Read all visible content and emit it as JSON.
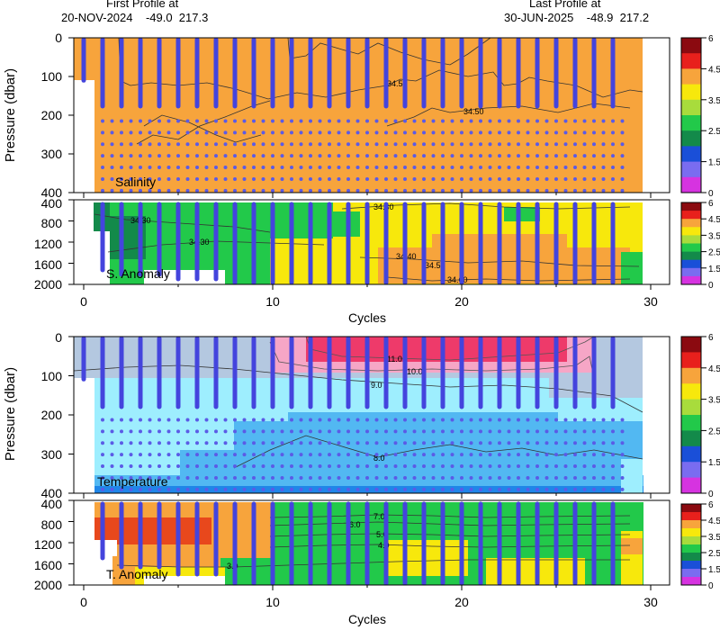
{
  "header": {
    "first_label": "First Profile at",
    "first_value": "20-NOV-2024    -49.0  217.3",
    "last_label": "Last Profile at",
    "last_value": "30-JUN-2025    -48.9  217.2"
  },
  "colors": {
    "salinity_field": "#f7a43c",
    "dots": "#5b5be6",
    "profile_line": "#4444dd",
    "temp_light": "#9eeefe",
    "temp_mid": "#52b8f2",
    "temp_deep": "#1f86e8",
    "temp_grey": "#b4c8e0",
    "temp_pink": "#f6a6c6",
    "temp_red": "#ee3a6a",
    "anom_green": "#22c94a",
    "anom_yellow": "#f7e80c",
    "anom_orange": "#f7a43c",
    "anom_red": "#e8481c"
  },
  "colorbar": {
    "ticks": [
      "6",
      "4.5",
      "3.5",
      "2.5",
      "1.5",
      "0"
    ],
    "segments": [
      "#8b0a10",
      "#e8201c",
      "#f7a43c",
      "#f7e80c",
      "#a8dc3c",
      "#22c94a",
      "#138a4a",
      "#1a4fd8",
      "#7a6cf0",
      "#d633e0"
    ]
  },
  "chart_data": [
    {
      "type": "heatmap",
      "name": "salinity-section",
      "label": "Salinity",
      "ylabel": "Pressure (dbar)",
      "ylim": [
        0,
        400
      ],
      "yticks": [
        "0",
        "100",
        "200",
        "300",
        "400"
      ],
      "xlim": [
        -1.5,
        31
      ],
      "contour_labels": [
        "34.5",
        "34.50"
      ],
      "grid": false
    },
    {
      "type": "heatmap",
      "name": "salinity-anomaly-section",
      "label": "S. Anomaly",
      "ylim": [
        400,
        2000
      ],
      "yticks": [
        "400",
        "800",
        "1200",
        "1600",
        "2000"
      ],
      "xlim": [
        -1.5,
        31
      ],
      "xticks": [
        "0",
        "10",
        "20",
        "30"
      ],
      "xlabel": "Cycles",
      "contour_labels": [
        "34.30",
        "34.30",
        "34.30",
        "34.40",
        "34.50",
        "34.60"
      ],
      "grid": false
    },
    {
      "type": "heatmap",
      "name": "temperature-section",
      "label": "Temperature",
      "ylabel": "Pressure (dbar)",
      "ylim": [
        0,
        400
      ],
      "yticks": [
        "0",
        "100",
        "200",
        "300",
        "400"
      ],
      "xlim": [
        -1.5,
        31
      ],
      "contour_labels": [
        "11.0",
        "10.0",
        "9.0",
        "8.0"
      ],
      "grid": false
    },
    {
      "type": "heatmap",
      "name": "temperature-anomaly-section",
      "label": "T. Anomaly",
      "ylim": [
        400,
        2000
      ],
      "yticks": [
        "400",
        "800",
        "1200",
        "1600",
        "2000"
      ],
      "xlim": [
        -1.5,
        31
      ],
      "xticks": [
        "0",
        "10",
        "20",
        "30"
      ],
      "xlabel": "Cycles",
      "contour_labels": [
        "7.0",
        "6.0",
        "5.0",
        "4.0",
        "3.0"
      ],
      "grid": false
    }
  ],
  "profiles": {
    "cycles": [
      0,
      1,
      2,
      3,
      4,
      5,
      6,
      7,
      8,
      9,
      10,
      11,
      12,
      13,
      14,
      15,
      16,
      17,
      18,
      19,
      20,
      21,
      22,
      23,
      24,
      25,
      26,
      27,
      28
    ],
    "first_cycle_depth": 110,
    "shallow_depth": 200
  }
}
